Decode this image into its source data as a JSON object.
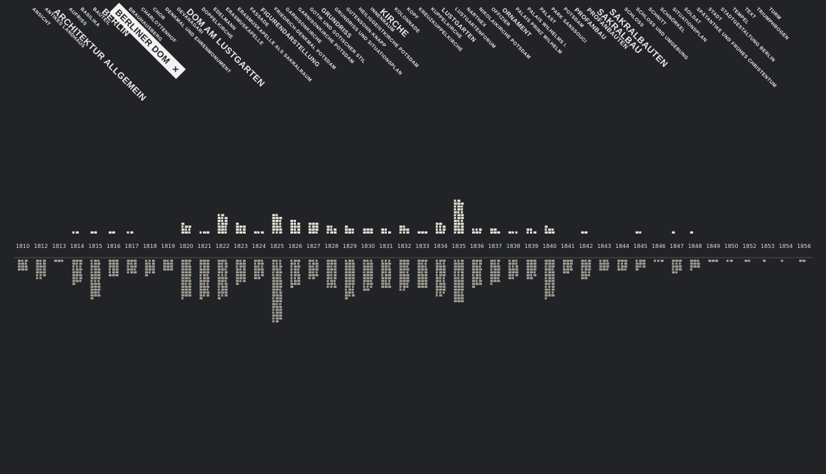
{
  "tags": [
    {
      "label": "ANSICHT",
      "size": 1
    },
    {
      "label": "ANTIKES LANDHAUS",
      "size": 1
    },
    {
      "label": "ARCHITEKTUR ALLGEMEIN",
      "size": 3
    },
    {
      "label": "AUFRISS",
      "size": 1
    },
    {
      "label": "BASILIKA",
      "size": 1
    },
    {
      "label": "BAUTEIL",
      "size": 1
    },
    {
      "label": "BERLIN",
      "size": 3
    },
    {
      "label": "BERLINER DOM",
      "size": 3,
      "active": true,
      "close": "×"
    },
    {
      "label": "BRAUHAUSBERG",
      "size": 1
    },
    {
      "label": "CHARLOTTENHOF",
      "size": 1
    },
    {
      "label": "CHOR",
      "size": 1
    },
    {
      "label": "DENKMAL UND EHRENMONUMENT",
      "size": 1
    },
    {
      "label": "DEVANAGARI",
      "size": 1
    },
    {
      "label": "DOM AM LUSTGARTEN",
      "size": 3
    },
    {
      "label": "DOPPELKIRCHE",
      "size": 1
    },
    {
      "label": "EDELMANN",
      "size": 1
    },
    {
      "label": "ERASMUSKAPELLE",
      "size": 1
    },
    {
      "label": "ERASMUSKAPELLE ALS SAKRALRAUM",
      "size": 1
    },
    {
      "label": "FASSADE",
      "size": 1
    },
    {
      "label": "FIGURENDARSTELLUNG",
      "size": 2
    },
    {
      "label": "FRIEDRICH-DENKMAL POTSDAM",
      "size": 1
    },
    {
      "label": "GARNISONKIRCHE",
      "size": 1
    },
    {
      "label": "GARNISONKIRCHE POTSDAM",
      "size": 1
    },
    {
      "label": "GOTIK UND GOTISCHER STIL",
      "size": 1
    },
    {
      "label": "GRUNDRISS",
      "size": 2
    },
    {
      "label": "GRUNDRISS UND SITUATIONSPLAN",
      "size": 1
    },
    {
      "label": "GUTENSOHN-KNAPP",
      "size": 1
    },
    {
      "label": "HEILIGGEISTKIRCHE POTSDAM",
      "size": 1
    },
    {
      "label": "INNENRAUM",
      "size": 1
    },
    {
      "label": "KIRCHE",
      "size": 3
    },
    {
      "label": "KOLONNADE",
      "size": 1
    },
    {
      "label": "KOPF",
      "size": 1
    },
    {
      "label": "KREUZKUPPELKIRCHE",
      "size": 1
    },
    {
      "label": "KUPPELKIRCHE",
      "size": 1
    },
    {
      "label": "LUSTGARTEN",
      "size": 2
    },
    {
      "label": "LUSTGARTENFORUM",
      "size": 1
    },
    {
      "label": "NARTHEX",
      "size": 1
    },
    {
      "label": "NIKOLAIKIRCHE POTSDAM",
      "size": 1
    },
    {
      "label": "OFFIZIER",
      "size": 1
    },
    {
      "label": "ORNAMENT",
      "size": 2
    },
    {
      "label": "PALAIS PRINZ WILHELM",
      "size": 1
    },
    {
      "label": "PALAIS WILHELMS I.",
      "size": 1
    },
    {
      "label": "PALAST",
      "size": 1
    },
    {
      "label": "PARK SANSSOUCI",
      "size": 1
    },
    {
      "label": "POTSDAM",
      "size": 1
    },
    {
      "label": "PROFANBAU",
      "size": 2
    },
    {
      "label": "PROFANBAUTEN",
      "size": 2
    },
    {
      "label": "SAKRALBAU",
      "size": 3
    },
    {
      "label": "SAKRALBAUTEN",
      "size": 3
    },
    {
      "label": "SCHLOSS",
      "size": 1
    },
    {
      "label": "SCHLOSS UND UMGEBUNG",
      "size": 1
    },
    {
      "label": "SCHNITT",
      "size": 1
    },
    {
      "label": "SCHNÖRKEL",
      "size": 1
    },
    {
      "label": "SITUATIONSPLAN",
      "size": 1
    },
    {
      "label": "SOLDAT",
      "size": 1
    },
    {
      "label": "SPÄTANTIKE UND FRÜHES CHRISTENTUM",
      "size": 1
    },
    {
      "label": "STADT",
      "size": 1
    },
    {
      "label": "STADTGESTALTUNG BERLIN",
      "size": 1
    },
    {
      "label": "TEMPEL",
      "size": 1
    },
    {
      "label": "TEXT",
      "size": 1
    },
    {
      "label": "TRIUMPHBOGEN",
      "size": 1
    },
    {
      "label": "TURM",
      "size": 1
    }
  ],
  "colors": {
    "background": "#222326",
    "upper_block": "#ece9dd",
    "lower_block": "#a4a097",
    "year_text": "#dcdcdc",
    "tag_text": "#e8e8e8"
  },
  "chart_data": {
    "type": "bar",
    "categories": [
      "1810",
      "1812",
      "1813",
      "1814",
      "1815",
      "1816",
      "1817",
      "1818",
      "1819",
      "1820",
      "1821",
      "1822",
      "1823",
      "1824",
      "1825",
      "1826",
      "1827",
      "1828",
      "1829",
      "1830",
      "1831",
      "1832",
      "1833",
      "1834",
      "1835",
      "1836",
      "1837",
      "1838",
      "1839",
      "1840",
      "1841",
      "1842",
      "1843",
      "1844",
      "1845",
      "1846",
      "1847",
      "1848",
      "1849",
      "1850",
      "1852",
      "1853",
      "1854",
      "1856"
    ],
    "series": [
      {
        "name": "upper",
        "values": [
          0,
          0,
          0,
          2,
          2,
          2,
          2,
          0,
          0,
          10,
          3,
          20,
          10,
          3,
          20,
          14,
          12,
          8,
          7,
          6,
          5,
          8,
          3,
          11,
          35,
          6,
          5,
          3,
          5,
          7,
          0,
          2,
          0,
          0,
          2,
          0,
          1,
          1,
          0,
          0,
          0,
          0,
          0,
          0
        ]
      },
      {
        "name": "lower",
        "values": [
          12,
          20,
          3,
          25,
          40,
          18,
          15,
          16,
          12,
          40,
          40,
          40,
          25,
          20,
          65,
          28,
          20,
          30,
          40,
          32,
          30,
          32,
          30,
          38,
          45,
          28,
          25,
          20,
          20,
          40,
          14,
          20,
          12,
          12,
          10,
          3,
          14,
          10,
          3,
          2,
          2,
          1,
          1,
          2
        ]
      }
    ]
  }
}
